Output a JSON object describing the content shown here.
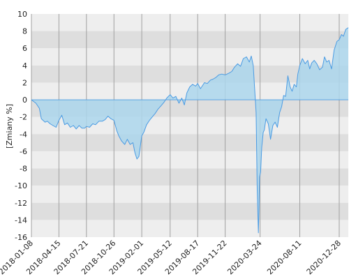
{
  "chart_data": {
    "type": "area",
    "ylabel": "[Zmiany %]",
    "ylim": [
      -16,
      10
    ],
    "yticks": [
      10,
      8,
      6,
      4,
      2,
      0,
      -2,
      -4,
      -6,
      -8,
      -10,
      -12,
      -14,
      -16
    ],
    "grid": true,
    "xlim": [
      "2018-01-08",
      "2021-01-29"
    ],
    "xticks": [
      "2018-01-08",
      "2018-04-15",
      "2018-07-21",
      "2018-10-26",
      "2019-02-01",
      "2019-05-12",
      "2019-08-17",
      "2019-11-22",
      "2020-03-24",
      "2020-08-11",
      "2020-12-28"
    ],
    "colors": {
      "line": "#4a9be3",
      "fill": "#acd6ec",
      "band_dark": "#dedede",
      "band_light": "#eeeeee",
      "vgrid": "#a0a0a0"
    },
    "series": [
      {
        "x": [
          "2018-01-08",
          "2018-01-24",
          "2018-02-05",
          "2018-02-12",
          "2018-02-25",
          "2018-03-05",
          "2018-03-15",
          "2018-03-25",
          "2018-04-05",
          "2018-04-15",
          "2018-04-25",
          "2018-05-05",
          "2018-05-15",
          "2018-05-25",
          "2018-06-05",
          "2018-06-15",
          "2018-06-25",
          "2018-07-05",
          "2018-07-15",
          "2018-07-21",
          "2018-08-01",
          "2018-08-12",
          "2018-08-22",
          "2018-09-03",
          "2018-09-15",
          "2018-09-25",
          "2018-10-05",
          "2018-10-15",
          "2018-10-26",
          "2018-11-05",
          "2018-11-12",
          "2018-11-22",
          "2018-12-03",
          "2018-12-12",
          "2018-12-22",
          "2019-01-01",
          "2019-01-08",
          "2019-01-15",
          "2019-01-22",
          "2019-02-01",
          "2019-02-08",
          "2019-02-18",
          "2019-02-28",
          "2019-03-10",
          "2019-03-20",
          "2019-03-30",
          "2019-04-10",
          "2019-04-20",
          "2019-04-30",
          "2019-05-12",
          "2019-05-22",
          "2019-06-01",
          "2019-06-12",
          "2019-06-22",
          "2019-07-01",
          "2019-07-10",
          "2019-07-20",
          "2019-07-30",
          "2019-08-10",
          "2019-08-17",
          "2019-08-27",
          "2019-09-10",
          "2019-09-20",
          "2019-10-01",
          "2019-10-10",
          "2019-10-20",
          "2019-10-30",
          "2019-11-10",
          "2019-11-22",
          "2019-12-05",
          "2019-12-15",
          "2019-12-25",
          "2020-01-05",
          "2020-01-15",
          "2020-01-25",
          "2020-02-05",
          "2020-02-15",
          "2020-02-22",
          "2020-02-29",
          "2020-03-05",
          "2020-03-10",
          "2020-03-14",
          "2020-03-18",
          "2020-03-20",
          "2020-03-22",
          "2020-03-26",
          "2020-03-30",
          "2020-04-04",
          "2020-04-08",
          "2020-04-14",
          "2020-04-22",
          "2020-04-30",
          "2020-05-08",
          "2020-05-16",
          "2020-05-24",
          "2020-06-01",
          "2020-06-08",
          "2020-06-15",
          "2020-06-22",
          "2020-06-30",
          "2020-07-08",
          "2020-07-15",
          "2020-07-22",
          "2020-07-30",
          "2020-08-04",
          "2020-08-11",
          "2020-08-20",
          "2020-08-30",
          "2020-09-08",
          "2020-09-15",
          "2020-09-22",
          "2020-10-01",
          "2020-10-10",
          "2020-10-20",
          "2020-10-30",
          "2020-11-06",
          "2020-11-14",
          "2020-11-22",
          "2020-12-01",
          "2020-12-10",
          "2020-12-20",
          "2020-12-28",
          "2021-01-05",
          "2021-01-12",
          "2021-01-20",
          "2021-01-29"
        ],
        "y": [
          0.0,
          -0.4,
          -1.0,
          -2.2,
          -2.6,
          -2.5,
          -2.8,
          -3.0,
          -3.2,
          -2.4,
          -1.8,
          -2.9,
          -2.7,
          -3.2,
          -3.0,
          -3.4,
          -3.0,
          -3.3,
          -3.3,
          -3.1,
          -3.2,
          -2.8,
          -2.9,
          -2.5,
          -2.5,
          -2.3,
          -1.9,
          -2.2,
          -2.4,
          -3.6,
          -4.2,
          -4.8,
          -5.2,
          -4.6,
          -5.2,
          -5.0,
          -6.2,
          -6.9,
          -6.6,
          -4.2,
          -3.8,
          -2.9,
          -2.4,
          -2.0,
          -1.6,
          -1.1,
          -0.7,
          -0.3,
          0.2,
          0.6,
          0.2,
          0.4,
          -0.4,
          0.2,
          -0.6,
          0.8,
          1.5,
          1.8,
          1.6,
          1.9,
          1.3,
          2.0,
          1.9,
          2.3,
          2.4,
          2.6,
          2.9,
          3.0,
          2.9,
          3.1,
          3.3,
          3.8,
          4.2,
          3.9,
          4.8,
          5.0,
          4.4,
          5.1,
          4.0,
          1.2,
          -1.5,
          -10.5,
          -15.5,
          -13.0,
          -9.0,
          -8.4,
          -5.5,
          -3.8,
          -3.5,
          -2.2,
          -2.8,
          -4.6,
          -3.0,
          -2.6,
          -3.2,
          -1.5,
          -0.8,
          0.5,
          0.4,
          2.8,
          1.5,
          1.0,
          1.8,
          1.5,
          3.0,
          4.0,
          4.8,
          4.2,
          4.6,
          3.6,
          4.3,
          4.6,
          4.2,
          3.5,
          3.8,
          5.0,
          4.4,
          4.6,
          3.6,
          5.8,
          6.8,
          7.0,
          7.6,
          7.4,
          8.2,
          8.4
        ]
      }
    ]
  }
}
